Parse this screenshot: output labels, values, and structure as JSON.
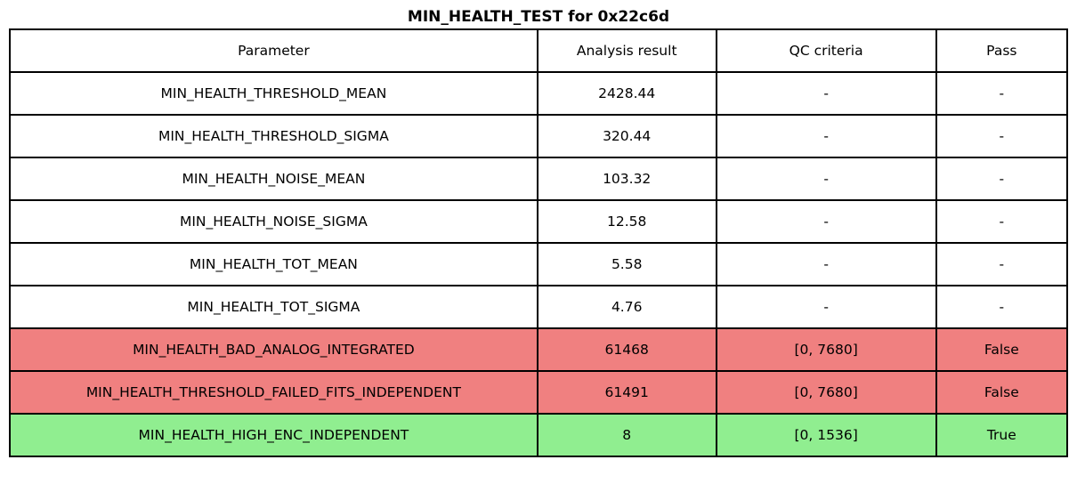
{
  "title": "MIN_HEALTH_TEST for 0x22c6d",
  "colors": {
    "fail_row": "#F08080",
    "pass_row": "#90EE90",
    "border": "#000000",
    "background": "#FFFFFF"
  },
  "chart_data": {
    "type": "table",
    "title": "MIN_HEALTH_TEST for 0x22c6d",
    "columns": [
      "Parameter",
      "Analysis result",
      "QC criteria",
      "Pass"
    ],
    "rows": [
      {
        "parameter": "MIN_HEALTH_THRESHOLD_MEAN",
        "result": "2428.44",
        "qc": "-",
        "pass": "-",
        "status": "neutral"
      },
      {
        "parameter": "MIN_HEALTH_THRESHOLD_SIGMA",
        "result": "320.44",
        "qc": "-",
        "pass": "-",
        "status": "neutral"
      },
      {
        "parameter": "MIN_HEALTH_NOISE_MEAN",
        "result": "103.32",
        "qc": "-",
        "pass": "-",
        "status": "neutral"
      },
      {
        "parameter": "MIN_HEALTH_NOISE_SIGMA",
        "result": "12.58",
        "qc": "-",
        "pass": "-",
        "status": "neutral"
      },
      {
        "parameter": "MIN_HEALTH_TOT_MEAN",
        "result": "5.58",
        "qc": "-",
        "pass": "-",
        "status": "neutral"
      },
      {
        "parameter": "MIN_HEALTH_TOT_SIGMA",
        "result": "4.76",
        "qc": "-",
        "pass": "-",
        "status": "neutral"
      },
      {
        "parameter": "MIN_HEALTH_BAD_ANALOG_INTEGRATED",
        "result": "61468",
        "qc": "[0, 7680]",
        "pass": "False",
        "status": "fail"
      },
      {
        "parameter": "MIN_HEALTH_THRESHOLD_FAILED_FITS_INDEPENDENT",
        "result": "61491",
        "qc": "[0, 7680]",
        "pass": "False",
        "status": "fail"
      },
      {
        "parameter": "MIN_HEALTH_HIGH_ENC_INDEPENDENT",
        "result": "8",
        "qc": "[0, 1536]",
        "pass": "True",
        "status": "pass"
      }
    ]
  }
}
